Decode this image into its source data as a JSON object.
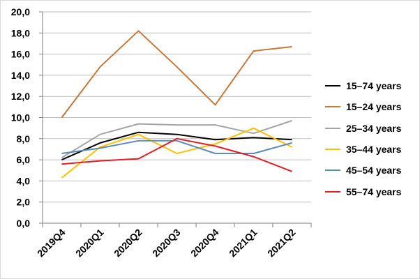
{
  "chart_data": {
    "type": "line",
    "categories": [
      "2019Q4",
      "2020Q1",
      "2020Q2",
      "2020Q3",
      "2020Q4",
      "2021Q1",
      "2021Q2"
    ],
    "y_ticks": [
      "0,0",
      "2,0",
      "4,0",
      "6,0",
      "8,0",
      "10,0",
      "12,0",
      "14,0",
      "16,0",
      "18,0",
      "20,0"
    ],
    "ylim": [
      0,
      20
    ],
    "grid": true,
    "legend_position": "right",
    "series": [
      {
        "name": "15–74 years",
        "color": "#000000",
        "values": [
          6.0,
          7.6,
          8.6,
          8.4,
          7.9,
          8.1,
          7.9
        ]
      },
      {
        "name": "15–24 years",
        "color": "#C8773B",
        "values": [
          10.0,
          14.8,
          18.2,
          14.8,
          11.2,
          16.3,
          16.7
        ]
      },
      {
        "name": "25–34 years",
        "color": "#A5A5A5",
        "values": [
          6.2,
          8.4,
          9.4,
          9.3,
          9.3,
          8.5,
          9.7
        ]
      },
      {
        "name": "35–44 years",
        "color": "#FFC000",
        "values": [
          4.3,
          7.2,
          8.4,
          6.6,
          7.5,
          9.0,
          7.2
        ]
      },
      {
        "name": "45–54 years",
        "color": "#5B8DB8",
        "values": [
          6.6,
          7.1,
          7.8,
          7.8,
          6.6,
          6.6,
          7.6
        ]
      },
      {
        "name": "55–74 years",
        "color": "#E31E24",
        "values": [
          5.6,
          5.9,
          6.1,
          8.0,
          7.3,
          6.3,
          4.9
        ]
      }
    ]
  }
}
